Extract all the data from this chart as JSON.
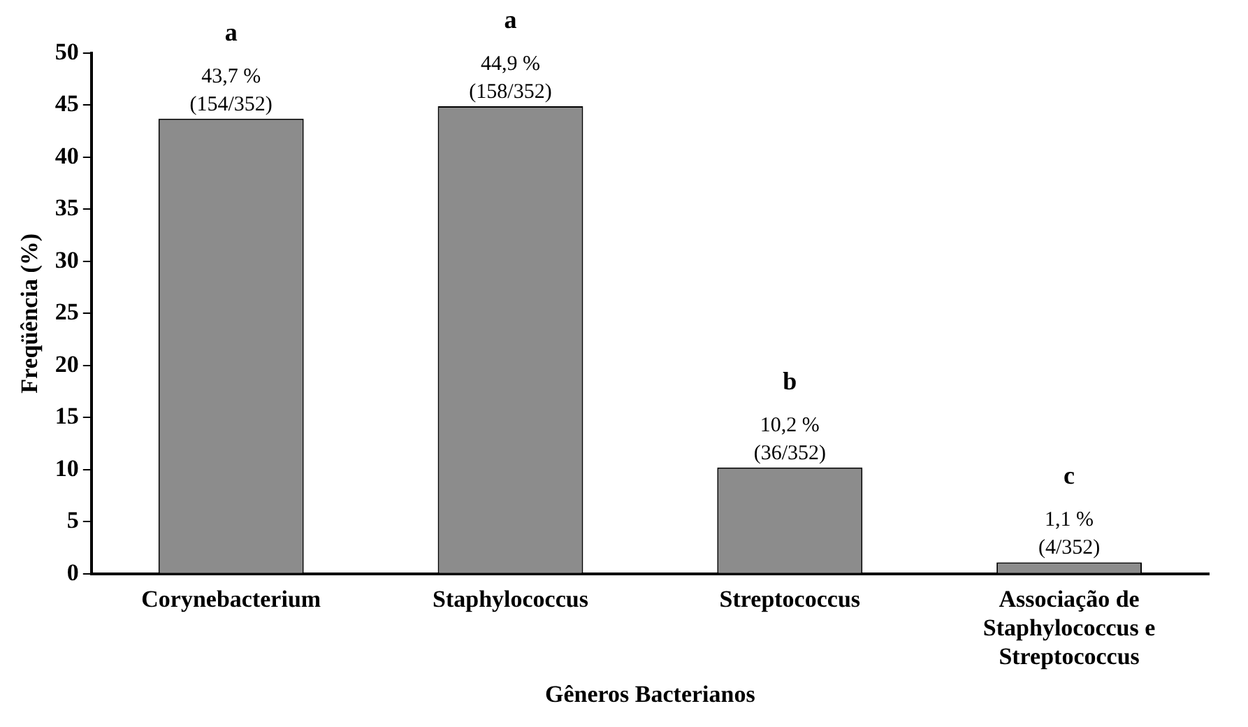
{
  "chart_data": {
    "type": "bar",
    "xlabel": "Gêneros Bacterianos",
    "ylabel": "Freqüência (%)",
    "categories": [
      "Corynebacterium",
      "Staphylococcus",
      "Streptococcus",
      "Associação de Staphylococcus e Streptococcus"
    ],
    "values": [
      43.7,
      44.9,
      10.2,
      1.1
    ],
    "value_labels": [
      "43,7 %\n(154/352)",
      "44,9 %\n(158/352)",
      "10,2 %\n(36/352)",
      "1,1 %\n(4/352)"
    ],
    "color": "#8c8c8c",
    "ylim": [
      0,
      50
    ],
    "yticks": [
      0,
      5,
      10,
      15,
      20,
      25,
      30,
      35,
      40,
      45,
      50
    ],
    "grid": false,
    "legend": false,
    "annotations": [
      {
        "text": "a",
        "x": "Corynebacterium",
        "y": 43.7
      },
      {
        "text": "a",
        "x": "Staphylococcus",
        "y": 44.9
      },
      {
        "text": "b",
        "x": "Streptococcus",
        "y": 10.2
      },
      {
        "text": "c",
        "x": "Associação de Staphylococcus e Streptococcus",
        "y": 1.1
      }
    ]
  }
}
